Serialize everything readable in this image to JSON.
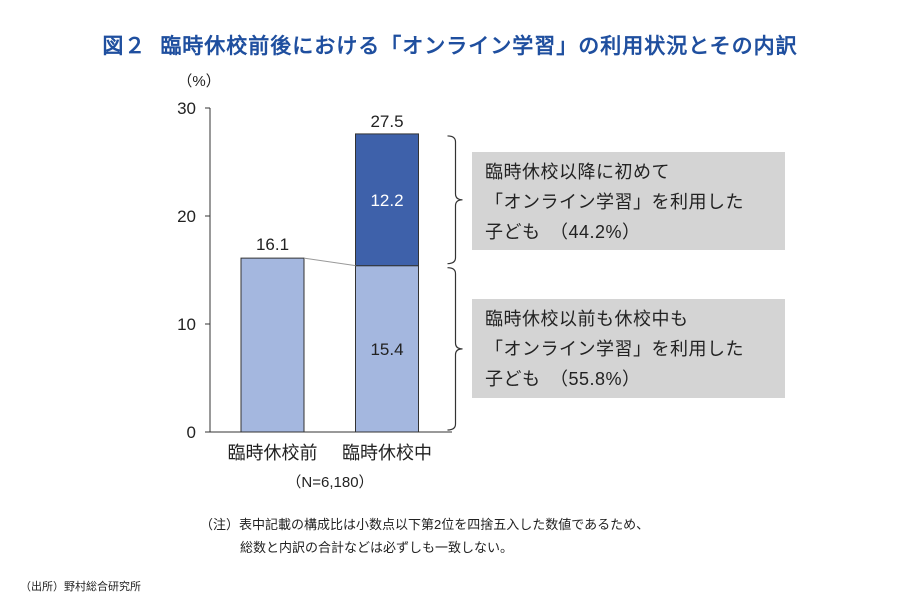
{
  "figure": {
    "number": "図２",
    "title": "臨時休校前後における「オンライン学習」の利用状況とその内訳",
    "title_color": "#1f4f9f"
  },
  "chart_data": {
    "type": "bar",
    "stacked": true,
    "categories": [
      "臨時休校前",
      "臨時休校中"
    ],
    "y_unit": "（%）",
    "ylim": [
      0,
      30
    ],
    "yticks": [
      0,
      10,
      20,
      30
    ],
    "grid": false,
    "legend": "none",
    "series": [
      {
        "values": [
          16.1,
          15.4
        ],
        "color": "#a4b7df",
        "label_color": "#222222"
      },
      {
        "values": [
          null,
          12.2
        ],
        "color": "#3e61aa",
        "label_color": "#ffffff"
      }
    ],
    "totals": [
      16.1,
      27.5
    ],
    "connector_line": true,
    "sample_note": "（N=6,180）",
    "callout_fill": "#d4d4d4",
    "callouts": [
      {
        "segment": [
          1,
          1
        ],
        "lines": [
          "臨時休校以降に初めて",
          "「オンライン学習」を利用した",
          "子ども　（44.2%）"
        ]
      },
      {
        "segment": [
          1,
          0
        ],
        "lines": [
          "臨時休校以前も休校中も",
          "「オンライン学習」を利用した",
          "子ども　（55.8%）"
        ]
      }
    ]
  },
  "notes": {
    "note_line1": "（注）表中記載の構成比は小数点以下第2位を四捨五入した数値であるため、",
    "note_line2": "総数と内訳の合計などは必ずしも一致しない。",
    "source": "（出所）野村総合研究所"
  }
}
